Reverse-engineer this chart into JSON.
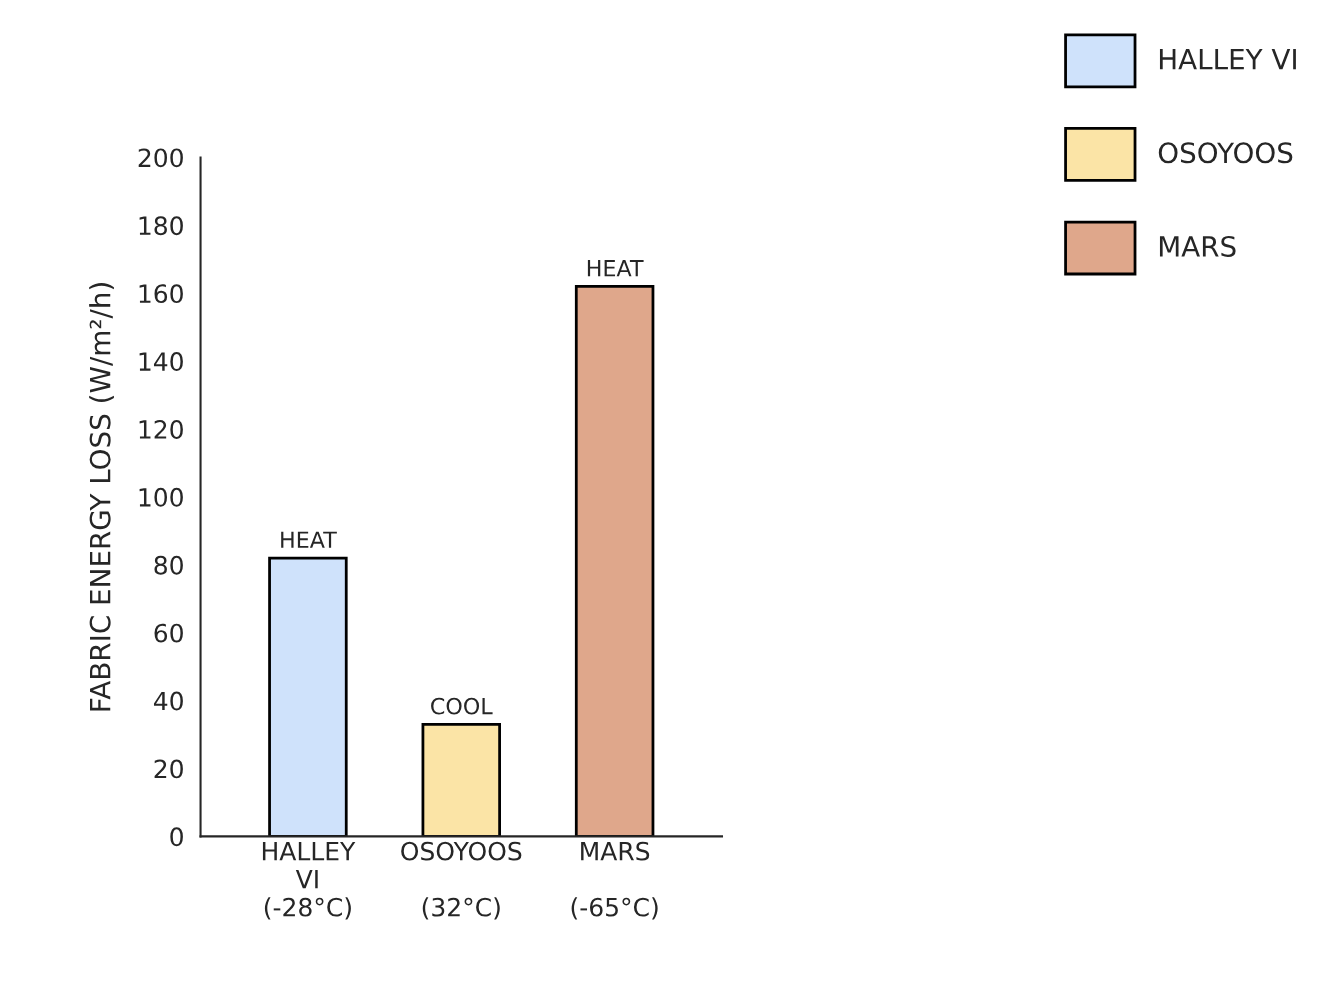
{
  "chart_data": {
    "type": "bar",
    "ylabel": "FABRIC ENERGY LOSS (W/m²/h)",
    "categories": [
      "HALLEY\nVI\n(-28°C)",
      "OSOYOOS\n\n(32°C)",
      "MARS\n\n(-65°C)"
    ],
    "series": [
      {
        "name": "HALLEY VI",
        "color": "#cfe2fb",
        "values": [
          82,
          null,
          null
        ],
        "value_labels": [
          "HEAT",
          null,
          null
        ]
      },
      {
        "name": "OSOYOOS",
        "color": "#fbe4a6",
        "values": [
          null,
          33,
          null
        ],
        "value_labels": [
          null,
          "COOL",
          null
        ]
      },
      {
        "name": "MARS",
        "color": "#dfa78b",
        "values": [
          null,
          null,
          162
        ],
        "value_labels": [
          null,
          null,
          "HEAT"
        ]
      }
    ],
    "ylim": [
      0,
      200
    ],
    "yticks": [
      0,
      20,
      40,
      60,
      80,
      100,
      120,
      140,
      160,
      180,
      200
    ],
    "grid": false,
    "legend": "top right"
  }
}
